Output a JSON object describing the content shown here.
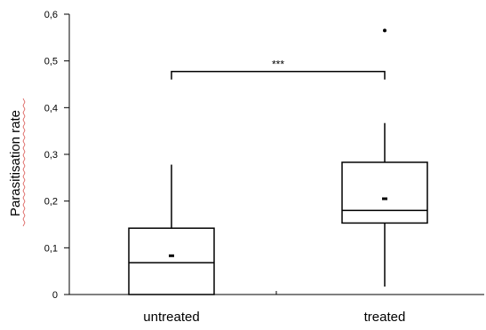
{
  "chart_data": {
    "type": "box",
    "title": "",
    "xlabel": "",
    "ylabel": "Parasitisation rate",
    "ylim": [
      0,
      0.6
    ],
    "yticks": [
      "0",
      "0,1",
      "0,2",
      "0,3",
      "0,4",
      "0,5",
      "0,6"
    ],
    "categories": [
      "untreated",
      "treated"
    ],
    "boxes": [
      {
        "category": "untreated",
        "whisker_low": 0,
        "q1": 0,
        "median": 0.068,
        "q3": 0.142,
        "whisker_high": 0.278,
        "mean": 0.083,
        "outliers": []
      },
      {
        "category": "treated",
        "whisker_low": 0.017,
        "q1": 0.153,
        "median": 0.18,
        "q3": 0.283,
        "whisker_high": 0.367,
        "mean": 0.205,
        "outliers": [
          0.565
        ]
      }
    ],
    "significance": {
      "label": "***",
      "between": [
        "untreated",
        "treated"
      ],
      "y": 0.5
    },
    "grid": false,
    "legend": false
  },
  "colors": {
    "axis": "#000000",
    "box_fill": "#ffffff",
    "ylabel_underline": "#d9534f"
  }
}
